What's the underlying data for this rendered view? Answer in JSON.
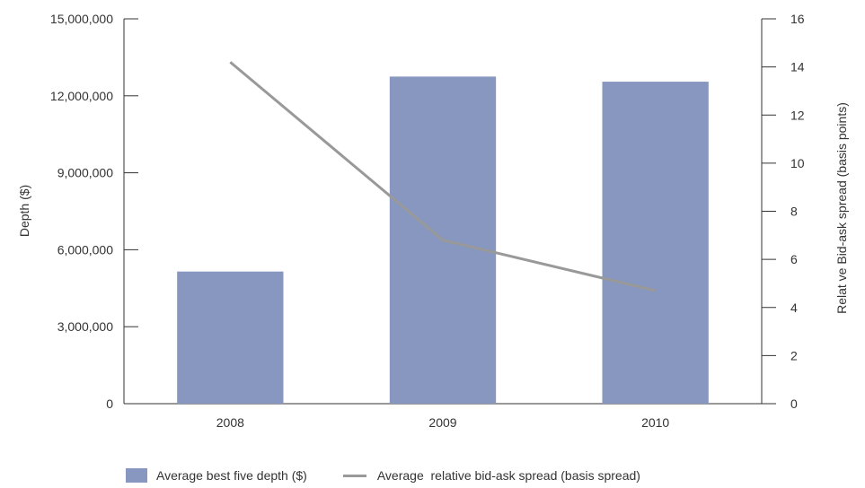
{
  "chart_data": {
    "type": "bar",
    "categories": [
      "2008",
      "2009",
      "2010"
    ],
    "series": [
      {
        "name": "Average best five depth ($)",
        "type": "bar",
        "axis": "left",
        "values": [
          5150000,
          12750000,
          12550000
        ],
        "color": "#8797bf"
      },
      {
        "name": "Average  relative bid-ask spread (basis spread)",
        "type": "line",
        "axis": "right",
        "values": [
          14.2,
          6.8,
          4.7
        ],
        "color": "#999999"
      }
    ],
    "y_left": {
      "label": "Depth ($)",
      "ylim": [
        0,
        15000000
      ],
      "ticks": [
        0,
        3000000,
        6000000,
        9000000,
        12000000,
        15000000
      ],
      "tick_labels": [
        "0",
        "3,000,000",
        "6,000,000",
        "9,000,000",
        "12,000,000",
        "15,000,000"
      ]
    },
    "y_right": {
      "label": "Relat ve Bid-ask spread (basis points)",
      "ylim": [
        0,
        16
      ],
      "ticks": [
        0,
        2,
        4,
        6,
        8,
        10,
        12,
        14,
        16
      ],
      "tick_labels": [
        "0",
        "2",
        "4",
        "6",
        "8",
        "10",
        "12",
        "14",
        "16"
      ]
    },
    "grid": false,
    "legend_position": "bottom-left"
  }
}
